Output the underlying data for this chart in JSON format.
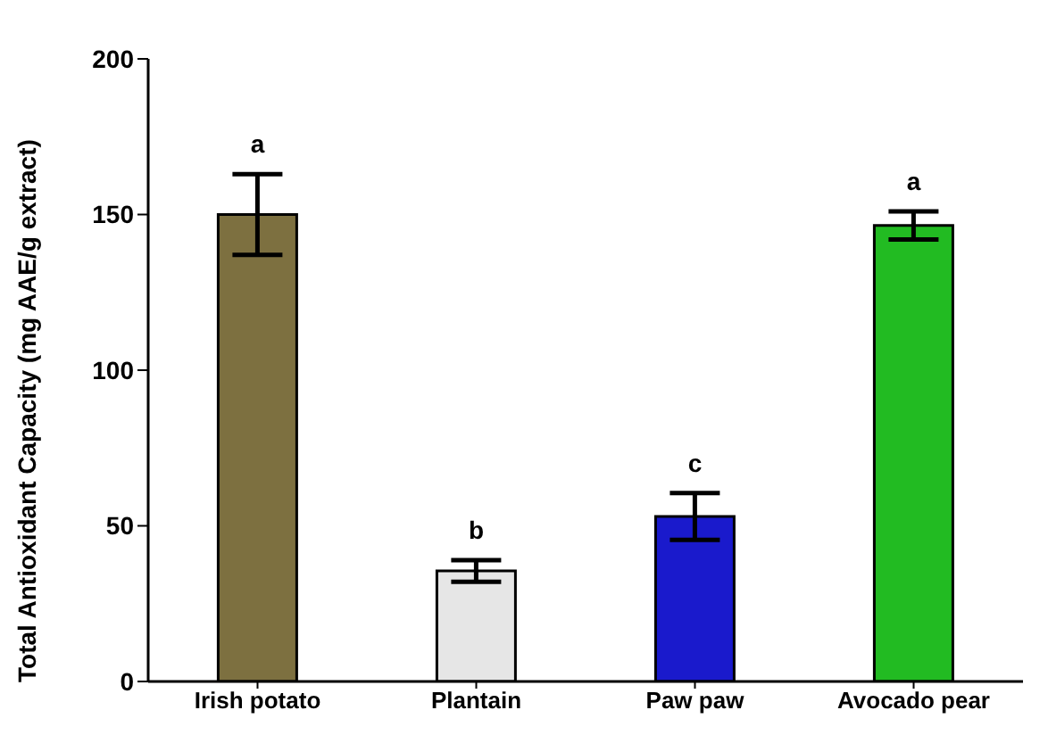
{
  "chart_data": {
    "type": "bar",
    "ylabel": "Total Antioxidant Capacity (mg AAE/g extract)",
    "categories": [
      "Irish potato",
      "Plantain",
      "Paw paw",
      "Avocado pear"
    ],
    "values": [
      150,
      35.5,
      53,
      146.5
    ],
    "errors": [
      13,
      3.5,
      7.5,
      4.5
    ],
    "colors": [
      "#7d7040",
      "#e6e6e6",
      "#1a1acc",
      "#22bb22"
    ],
    "ylim": [
      0,
      200
    ],
    "yticks": [
      0,
      50,
      100,
      150,
      200
    ],
    "grid": false,
    "annotations": [
      {
        "text": "a",
        "x": "Irish potato",
        "y": 163
      },
      {
        "text": "b",
        "x": "Plantain",
        "y": 39
      },
      {
        "text": "c",
        "x": "Paw paw",
        "y": 60.5
      },
      {
        "text": "a",
        "x": "Avocado pear",
        "y": 151
      }
    ]
  }
}
